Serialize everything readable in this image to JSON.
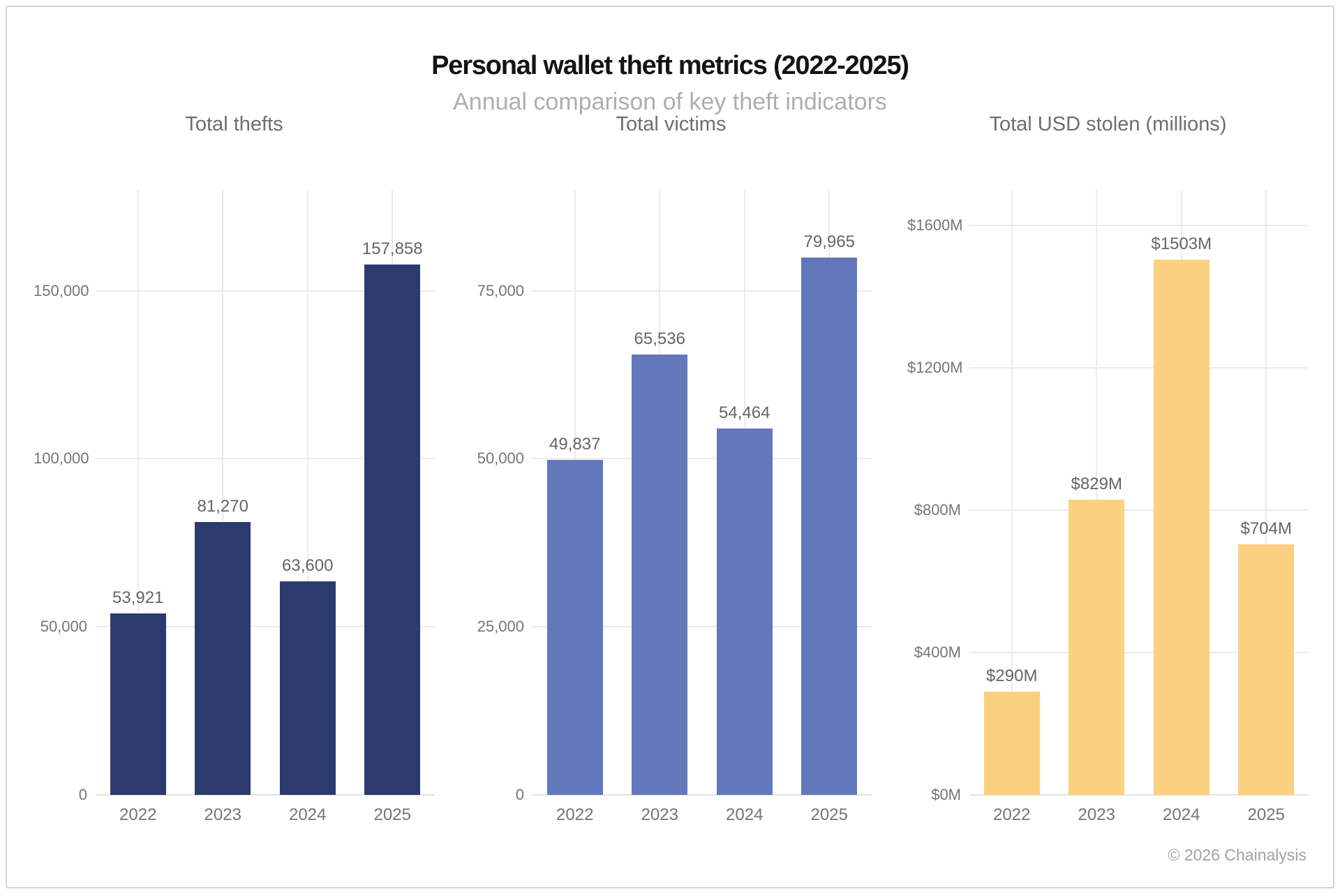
{
  "header": {
    "title": "Personal wallet theft metrics (2022-2025)",
    "subtitle": "Annual comparison of key theft indicators"
  },
  "footer": {
    "credit": "© 2026 Chainalysis"
  },
  "colors": {
    "navy": "#2c3b6e",
    "blue": "#6378bc",
    "yellow": "#fbd181",
    "gridline": "#ebebeb",
    "zero_line": "#e3e3e3",
    "axis_text": "#757575",
    "value_text": "#656565",
    "chart_title_text": "#6e6e6e",
    "title_text": "#141414",
    "subtitle_text": "#aeaeae",
    "credit_text": "#a2a2a2",
    "frame_border": "#d3d3d3"
  },
  "chart_data": [
    {
      "type": "bar",
      "title": "Total thefts",
      "categories": [
        "2022",
        "2023",
        "2024",
        "2025"
      ],
      "values": [
        53921,
        81270,
        63600,
        157858
      ],
      "value_labels": [
        "53,921",
        "81,270",
        "63,600",
        "157,858"
      ],
      "yticks": [
        {
          "value": 0,
          "label": "0"
        },
        {
          "value": 50000,
          "label": "50,000"
        },
        {
          "value": 100000,
          "label": "100,000"
        },
        {
          "value": 150000,
          "label": "150,000"
        }
      ],
      "ylim": [
        0,
        180000
      ],
      "grid": true,
      "legend": "none",
      "bar_color": "#2c3b6e"
    },
    {
      "type": "bar",
      "title": "Total victims",
      "categories": [
        "2022",
        "2023",
        "2024",
        "2025"
      ],
      "values": [
        49837,
        65536,
        54464,
        79965
      ],
      "value_labels": [
        "49,837",
        "65,536",
        "54,464",
        "79,965"
      ],
      "yticks": [
        {
          "value": 0,
          "label": "0"
        },
        {
          "value": 25000,
          "label": "25,000"
        },
        {
          "value": 50000,
          "label": "50,000"
        },
        {
          "value": 75000,
          "label": "75,000"
        }
      ],
      "ylim": [
        0,
        90000
      ],
      "grid": true,
      "legend": "none",
      "bar_color": "#6378bc"
    },
    {
      "type": "bar",
      "title": "Total USD stolen (millions)",
      "categories": [
        "2022",
        "2023",
        "2024",
        "2025"
      ],
      "values": [
        290,
        829,
        1503,
        704
      ],
      "value_labels": [
        "$290M",
        "$829M",
        "$1503M",
        "$704M"
      ],
      "yticks": [
        {
          "value": 0,
          "label": "$0M"
        },
        {
          "value": 400,
          "label": "$400M"
        },
        {
          "value": 800,
          "label": "$800M"
        },
        {
          "value": 1200,
          "label": "$1200M"
        },
        {
          "value": 1600,
          "label": "$1600M"
        }
      ],
      "ylim": [
        0,
        1700
      ],
      "grid": true,
      "legend": "none",
      "bar_color": "#fbd181"
    }
  ]
}
